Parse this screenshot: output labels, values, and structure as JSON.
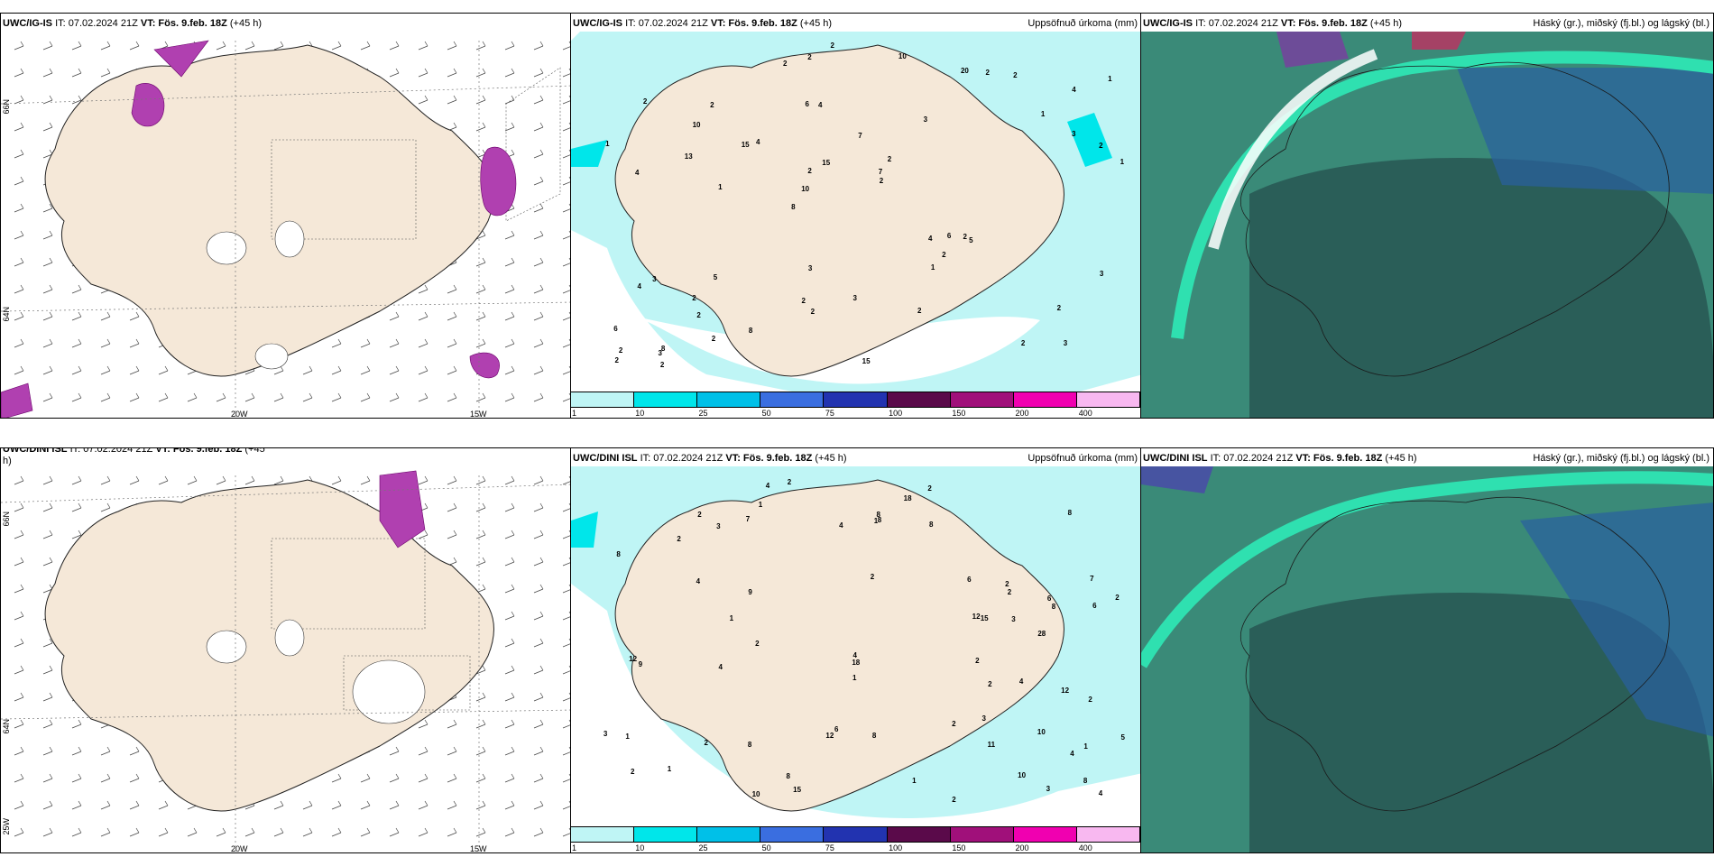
{
  "rows": [
    {
      "left": {
        "model_bold": "UWC/IG-IS",
        "it_text": "IT: 07.02.2024 21Z",
        "vt_bold": "VT: Fös. 9.feb. 18Z",
        "lead": "(+45 h)",
        "lon_labels": [
          "20W",
          "15W"
        ],
        "lat_labels": [
          "66N",
          "64N"
        ]
      },
      "middle": {
        "model_bold": "UWC/IG-IS",
        "it_text": "IT: 07.02.2024 21Z",
        "vt_bold": "VT: Fös. 9.feb. 18Z",
        "lead": "(+45 h)",
        "right_title": "Uppsöfnuð úrkoma (mm)",
        "numbers": [
          "3",
          "4",
          "4",
          "8",
          "3",
          "8",
          "6",
          "7",
          "3",
          "4",
          "6",
          "2",
          "4",
          "2",
          "5",
          "2",
          "2",
          "1",
          "4",
          "3",
          "10",
          "2",
          "2",
          "2",
          "20",
          "5",
          "2",
          "2",
          "2",
          "15",
          "15",
          "13",
          "1",
          "2",
          "2",
          "7",
          "2",
          "2",
          "2",
          "4",
          "1",
          "1",
          "2",
          "2",
          "2",
          "2",
          "2",
          "3",
          "2",
          "2",
          "1",
          "1",
          "10",
          "2",
          "3",
          "10",
          "2",
          "15",
          "3",
          "3",
          "8",
          "6"
        ]
      },
      "right": {
        "model_bold": "UWC/IG-IS",
        "it_text": "IT: 07.02.2024 21Z",
        "vt_bold": "VT: Fös. 9.feb. 18Z",
        "lead": "(+45 h)",
        "right_title": "Háský (gr.), miðský (fj.bl.) og lágský (bl.)"
      }
    },
    {
      "left": {
        "model_bold": "UWC/DINI ISL",
        "it_text": "IT: 07.02.2024 21Z",
        "vt_bold": "VT: Fös. 9.feb. 18Z",
        "lead": "(+45",
        "lead2": "h)",
        "lon_labels": [
          "20W",
          "15W"
        ],
        "lat_labels": [
          "66N",
          "64N",
          "25W"
        ]
      },
      "middle": {
        "model_bold": "UWC/DINI ISL",
        "it_text": "IT: 07.02.2024 21Z",
        "vt_bold": "VT: Fös. 9.feb. 18Z",
        "lead": "(+45 h)",
        "right_title": "Uppsöfnuð úrkoma (mm)",
        "numbers": [
          "10",
          "7",
          "1",
          "2",
          "2",
          "1",
          "6",
          "8",
          "8",
          "4",
          "6",
          "8",
          "28",
          "15",
          "1",
          "2",
          "4",
          "7",
          "6",
          "8",
          "12",
          "9",
          "1",
          "12",
          "8",
          "12",
          "18",
          "8",
          "6",
          "5",
          "4",
          "11",
          "10",
          "18",
          "12",
          "10",
          "15",
          "4",
          "3",
          "2",
          "4",
          "3",
          "1",
          "1",
          "2",
          "2",
          "1",
          "2",
          "9",
          "2",
          "2",
          "1",
          "8",
          "2",
          "2",
          "2",
          "4",
          "2",
          "2",
          "8",
          "2",
          "3",
          "4",
          "8",
          "3",
          "8",
          "3",
          "4",
          "2"
        ]
      },
      "right": {
        "model_bold": "UWC/DINI ISL",
        "it_text": "IT: 07.02.2024 21Z",
        "vt_bold": "VT: Fös. 9.feb. 18Z",
        "lead": "(+45 h)",
        "right_title": "Háský (gr.), miðský (fj.bl.) og lágský (bl.)"
      }
    }
  ],
  "colorbar": {
    "ticks": [
      "1",
      "10",
      "25",
      "50",
      "75",
      "100",
      "150",
      "200",
      "400"
    ],
    "colors": [
      "#bff5f5",
      "#00e6ea",
      "#00c0e8",
      "#3a6ee0",
      "#2233b0",
      "#5a0a4a",
      "#a0107a",
      "#f000b0",
      "#f8b8f0"
    ]
  },
  "colors": {
    "land": "#f5e8d8",
    "precip_light": "#bff5f5",
    "precip_mid": "#00e6ea",
    "cloud_low": "#3a8a78",
    "cloud_high": "#2fe0b0",
    "cloud_mid_blue": "#2a5fa0",
    "purple": "#b040b0"
  }
}
